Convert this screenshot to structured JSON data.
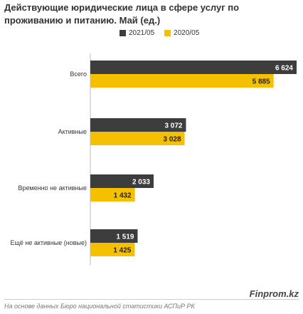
{
  "chart_data": {
    "type": "bar",
    "orientation": "horizontal",
    "title": "Действующие юридические лица в сфере услуг по проживанию и питанию. Май (ед.)",
    "categories": [
      "Всего",
      "Активные",
      "Временно не активные",
      "Ещё не активные (новые)"
    ],
    "series": [
      {
        "name": "2021/05",
        "color": "#3d3d3d",
        "values": [
          6624,
          3072,
          2033,
          1519
        ],
        "labels": [
          "6 624",
          "3 072",
          "2 033",
          "1 519"
        ]
      },
      {
        "name": "2020/05",
        "color": "#f5c000",
        "values": [
          5885,
          3028,
          1432,
          1425
        ],
        "labels": [
          "5 885",
          "3 028",
          "1 432",
          "1 425"
        ]
      }
    ],
    "xlim": [
      0,
      6624
    ],
    "grid": false,
    "legend": "top"
  },
  "watermark": "Finprom.kz",
  "source": "На основе данных Бюро национальной статистики АСПиР РК"
}
